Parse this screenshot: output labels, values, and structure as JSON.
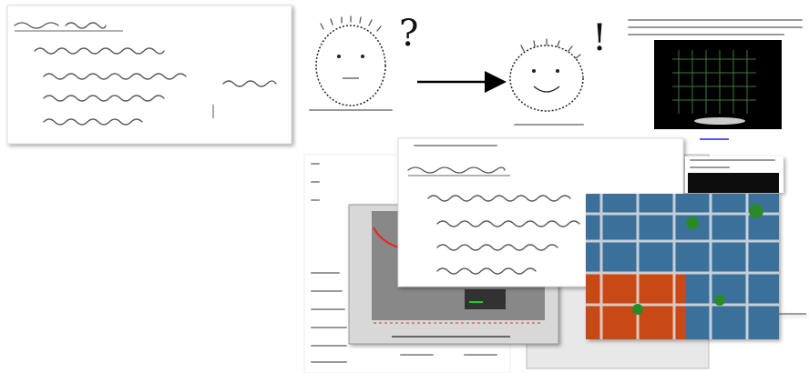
{
  "marks": {
    "question": "?",
    "exclamation": "!"
  }
}
